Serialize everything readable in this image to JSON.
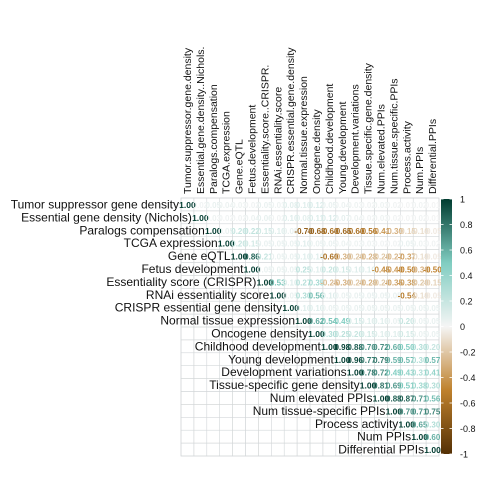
{
  "chart_data": {
    "type": "heatmap",
    "title": "",
    "variables": [
      "Tumor suppressor gene density",
      "Essential gene density (Nichols)",
      "Paralogs compensation",
      "TCGA expression",
      "Gene eQTL",
      "Fetus development",
      "Essentiality score (CRISPR)",
      "RNAi essentiality score",
      "CRISPR essential gene density",
      "Normal tissue expression",
      "Oncogene density",
      "Childhood development",
      "Young development",
      "Development variations",
      "Tissue-specific gene density",
      "Num elevated PPIs",
      "Num tissue-specific PPIs",
      "Process activity",
      "Num PPIs",
      "Differential PPIs"
    ],
    "column_labels": [
      "Tumor.suppressor.gene.density",
      "Essential.gene.density..Nichols.",
      "Paralogs.compensation",
      "TCGA.expression",
      "Gene.eQTL",
      "Fetus.development",
      "Essentiality.score..CRISPR.",
      "RNAi.essentiality.score",
      "CRISPR.essential.gene.density",
      "Normal.tissue.expression",
      "Oncogene.density",
      "Childhood.development",
      "Young.development",
      "Development.variations",
      "Tissue.specific.gene.density",
      "Num.elevated.PPIs",
      "Num.tissue.specific.PPIs",
      "Process.activity",
      "Num.PPIs",
      "Differential.PPIs"
    ],
    "matrix": [
      [
        1.0,
        0.02,
        0.05,
        0.04,
        0.03,
        0.02,
        0.05,
        0.03,
        0.08,
        0.1,
        0.12,
        0.05,
        0.04,
        0.03,
        0.02,
        0.03,
        0.02,
        0.01,
        0.02,
        0.01
      ],
      [
        0.02,
        1.0,
        0.03,
        0.02,
        0.02,
        0.04,
        0.06,
        0.02,
        0.1,
        0.08,
        0.11,
        0.12,
        0.07,
        0.04,
        0.02,
        0.03,
        0.02,
        0.01,
        0.02,
        0.01
      ],
      [
        0.05,
        0.03,
        1.0,
        0.05,
        0.2,
        0.22,
        0.15,
        0.1,
        0.05,
        -0.7,
        -0.68,
        -0.6,
        -0.65,
        -0.6,
        -0.56,
        -0.41,
        -0.3,
        -0.15,
        -0.1,
        -0.05
      ],
      [
        0.04,
        0.02,
        0.05,
        1.0,
        0.2,
        0.15,
        0.05,
        0.05,
        0.05,
        0.1,
        0.05,
        0.05,
        0.04,
        0.03,
        0.03,
        0.02,
        0.02,
        0.05,
        0.03,
        0.02
      ],
      [
        0.03,
        0.02,
        0.2,
        0.2,
        1.0,
        0.86,
        0.21,
        0.05,
        0.05,
        0.1,
        0.1,
        -0.6,
        -0.3,
        -0.2,
        -0.28,
        -0.2,
        -0.27,
        -0.37,
        -0.1,
        -0.05
      ],
      [
        0.02,
        0.04,
        0.22,
        0.15,
        0.86,
        1.0,
        0.05,
        0.05,
        0.05,
        0.25,
        0.1,
        0.2,
        0.15,
        0.1,
        0.1,
        -0.45,
        -0.4,
        -0.5,
        -0.3,
        -0.5
      ],
      [
        0.05,
        0.06,
        0.15,
        0.05,
        0.21,
        0.05,
        1.0,
        0.53,
        0.1,
        0.27,
        0.35,
        -0.25,
        -0.3,
        -0.2,
        -0.29,
        -0.2,
        -0.35,
        -0.38,
        -0.2,
        -0.15
      ],
      [
        0.03,
        0.02,
        0.1,
        0.05,
        0.05,
        0.05,
        0.53,
        1.0,
        0.05,
        0.3,
        0.56,
        0.1,
        0.05,
        0.05,
        0.05,
        0.05,
        0.05,
        -0.54,
        -0.1,
        -0.05
      ],
      [
        0.08,
        0.1,
        0.05,
        0.05,
        0.05,
        0.05,
        0.1,
        0.05,
        1.0,
        0.1,
        0.1,
        0.05,
        0.05,
        0.05,
        0.05,
        0.05,
        0.05,
        0.05,
        0.05,
        0.05
      ],
      [
        0.1,
        0.08,
        -0.7,
        0.1,
        0.1,
        0.25,
        0.27,
        0.3,
        0.1,
        1.0,
        0.62,
        0.54,
        0.49,
        0.15,
        0.1,
        0.1,
        0.05,
        0.2,
        0.05,
        0.05
      ],
      [
        0.12,
        0.11,
        -0.68,
        0.05,
        0.1,
        0.1,
        0.35,
        0.56,
        0.1,
        0.62,
        1.0,
        0.3,
        0.25,
        0.2,
        0.15,
        0.1,
        0.1,
        0.15,
        0.05,
        0.05
      ],
      [
        0.05,
        0.12,
        -0.6,
        0.05,
        -0.6,
        0.2,
        -0.25,
        0.1,
        0.05,
        0.54,
        0.3,
        1.0,
        0.98,
        0.88,
        0.7,
        0.72,
        0.6,
        0.5,
        0.3,
        0.2
      ],
      [
        0.04,
        0.07,
        -0.65,
        0.04,
        -0.3,
        0.15,
        -0.3,
        0.05,
        0.05,
        0.49,
        0.25,
        0.98,
        1.0,
        0.96,
        0.77,
        0.79,
        0.59,
        0.57,
        0.3,
        0.57
      ],
      [
        0.03,
        0.04,
        -0.6,
        0.03,
        -0.2,
        0.1,
        -0.2,
        0.05,
        0.05,
        0.15,
        0.2,
        0.88,
        0.96,
        1.0,
        0.78,
        0.72,
        0.49,
        0.43,
        0.31,
        0.41
      ],
      [
        0.02,
        0.02,
        -0.56,
        0.03,
        -0.28,
        0.1,
        -0.29,
        0.05,
        0.05,
        0.1,
        0.15,
        0.7,
        0.77,
        0.78,
        1.0,
        0.81,
        0.69,
        0.51,
        0.38,
        0.3
      ],
      [
        0.03,
        0.03,
        -0.41,
        0.02,
        -0.2,
        -0.45,
        -0.2,
        0.05,
        0.05,
        0.1,
        0.1,
        0.72,
        0.79,
        0.72,
        0.81,
        1.0,
        0.88,
        0.87,
        0.71,
        0.56
      ],
      [
        0.02,
        0.02,
        -0.3,
        0.02,
        -0.27,
        -0.4,
        -0.35,
        0.05,
        0.05,
        0.05,
        0.1,
        0.6,
        0.59,
        0.49,
        0.69,
        0.88,
        1.0,
        0.7,
        0.71,
        0.75
      ],
      [
        0.01,
        0.01,
        -0.15,
        0.05,
        -0.37,
        -0.5,
        -0.38,
        -0.54,
        0.05,
        0.2,
        0.15,
        0.5,
        0.57,
        0.43,
        0.51,
        0.87,
        0.7,
        1.0,
        0.65,
        0.3
      ],
      [
        0.02,
        0.02,
        -0.1,
        0.03,
        -0.1,
        -0.3,
        -0.2,
        -0.1,
        0.05,
        0.05,
        0.05,
        0.3,
        0.3,
        0.31,
        0.38,
        0.71,
        0.71,
        0.65,
        1.0,
        0.6
      ],
      [
        0.01,
        0.01,
        -0.05,
        0.02,
        -0.05,
        -0.5,
        -0.15,
        -0.05,
        0.05,
        0.05,
        0.05,
        0.2,
        0.57,
        0.41,
        0.3,
        0.56,
        0.75,
        0.3,
        0.6,
        1.0
      ]
    ],
    "show_upper_triangle": true,
    "value_labels_format": "2 decimals",
    "colorbar": {
      "range": [
        -1,
        1
      ],
      "ticks": [
        "1",
        "0.8",
        "0.6",
        "0.4",
        "0.2",
        "0",
        "-0.2",
        "-0.4",
        "-0.6",
        "-0.8",
        "-1"
      ],
      "colors": {
        "negative": "#543005",
        "mid_negative": "#bf812d",
        "zero": "#f5f5f5",
        "mid_positive": "#80cdc1",
        "positive": "#003c30"
      }
    },
    "grid": true
  }
}
